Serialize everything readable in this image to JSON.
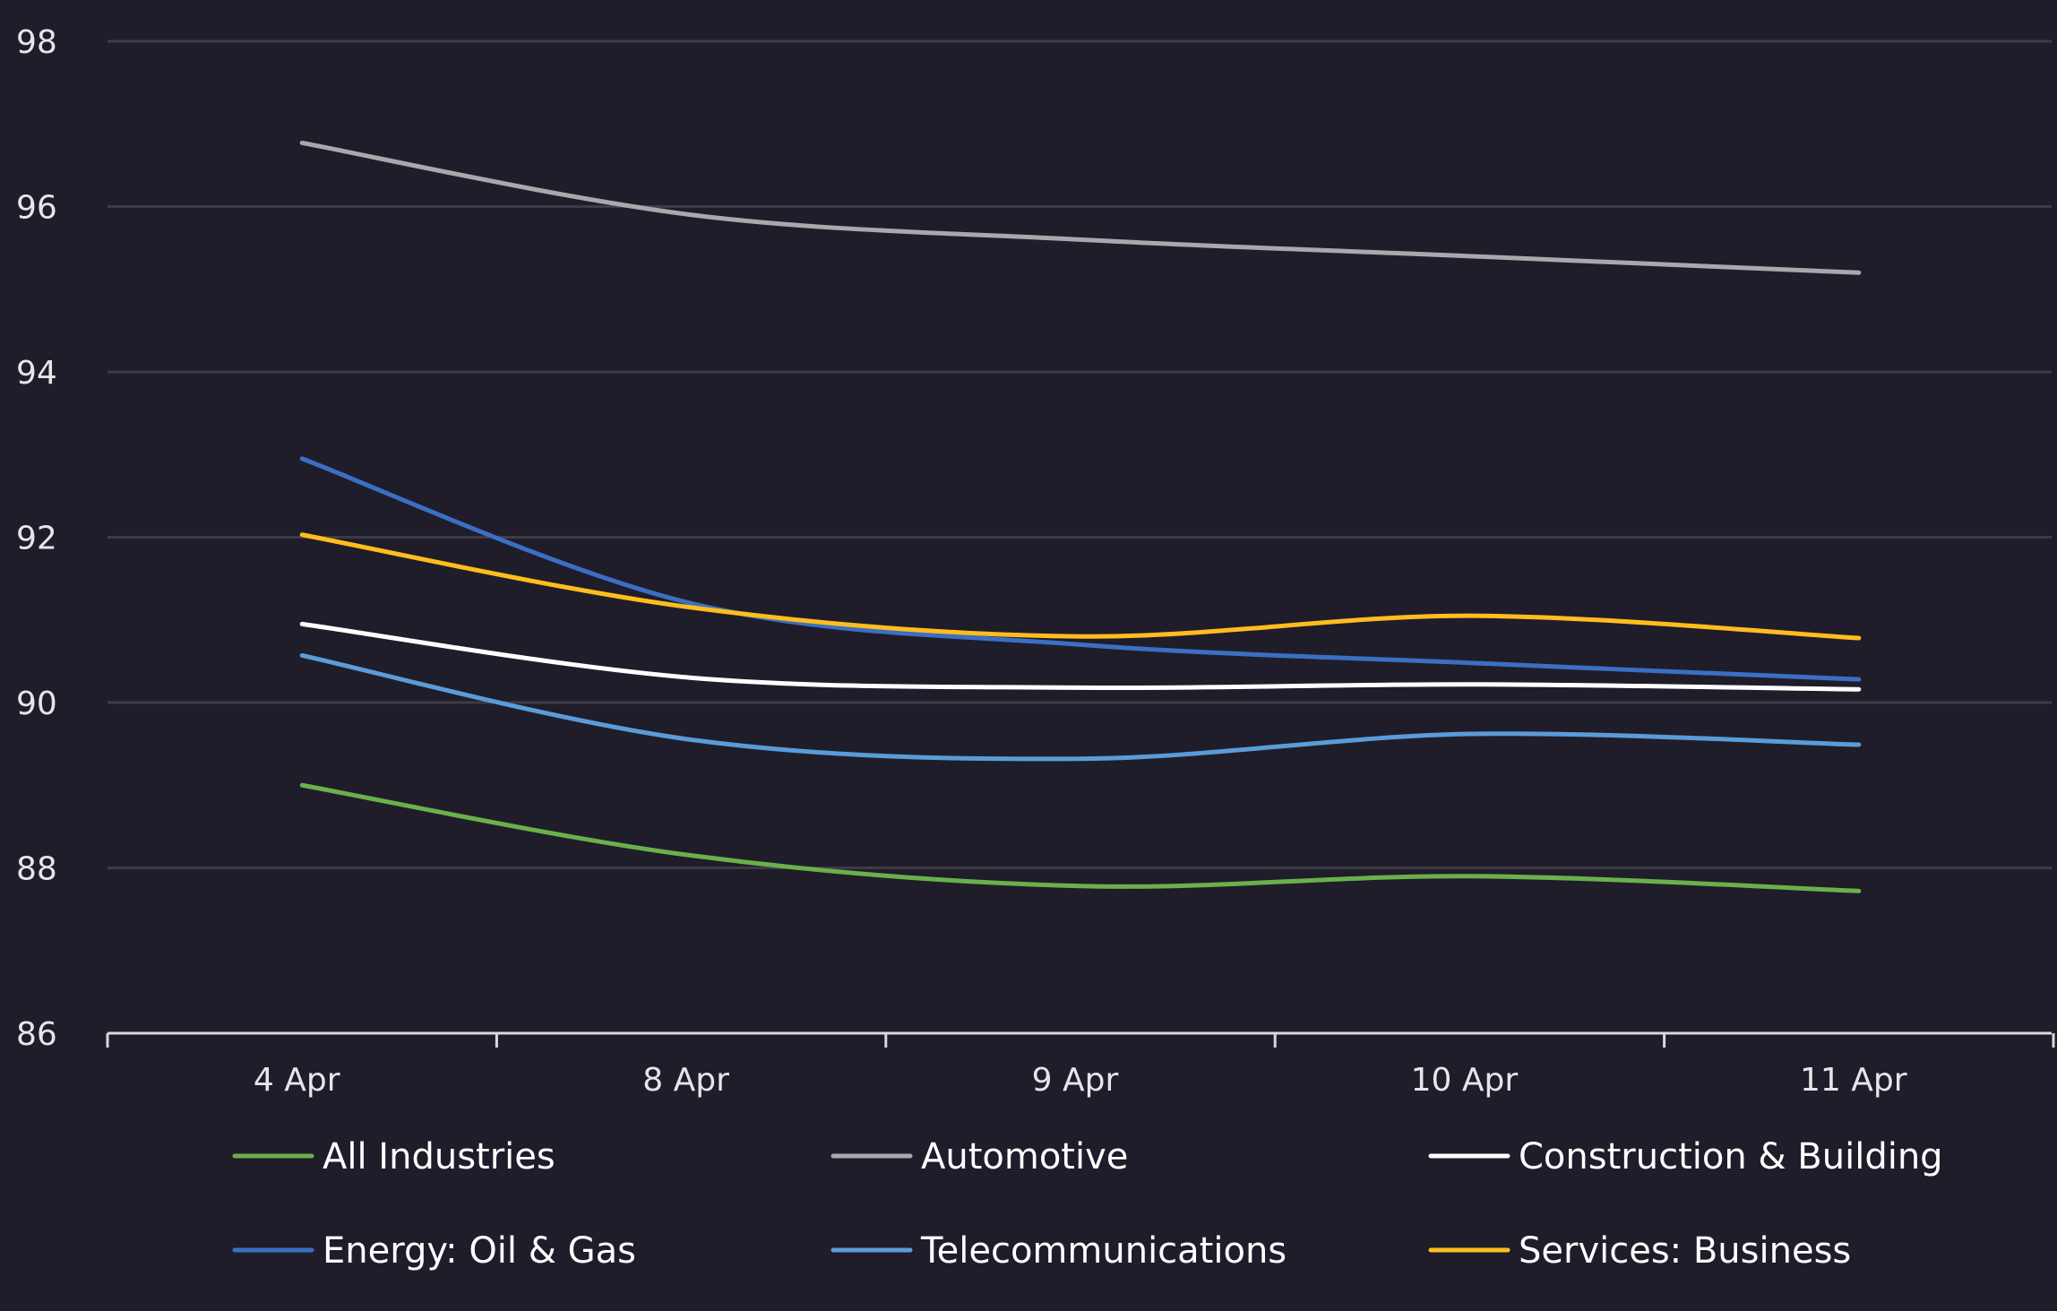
{
  "chart_data": {
    "type": "line",
    "title": "",
    "xlabel": "",
    "ylabel": "",
    "ylim": [
      86,
      98
    ],
    "yticks": [
      86,
      88,
      90,
      92,
      94,
      96,
      98
    ],
    "grid": true,
    "legend_position": "bottom",
    "categories": [
      "4 Apr",
      "8 Apr",
      "9 Apr",
      "10 Apr",
      "11 Apr"
    ],
    "series": [
      {
        "name": "All Industries",
        "color": "#6ab04c",
        "values": [
          89.0,
          88.15,
          87.78,
          87.9,
          87.72
        ]
      },
      {
        "name": "Automotive",
        "color": "#a8a8ad",
        "values": [
          96.77,
          95.9,
          95.6,
          95.4,
          95.2
        ]
      },
      {
        "name": "Construction & Building",
        "color": "#ffffff",
        "values": [
          90.95,
          90.3,
          90.18,
          90.22,
          90.16
        ]
      },
      {
        "name": "Energy: Oil & Gas",
        "color": "#3a6fc4",
        "values": [
          92.95,
          91.2,
          90.7,
          90.48,
          90.28
        ]
      },
      {
        "name": "Telecommunications",
        "color": "#5b9bd9",
        "values": [
          90.57,
          89.55,
          89.32,
          89.62,
          89.49
        ]
      },
      {
        "name": "Services: Business",
        "color": "#ffbd1e",
        "values": [
          92.03,
          91.15,
          90.8,
          91.05,
          90.78
        ]
      }
    ]
  }
}
